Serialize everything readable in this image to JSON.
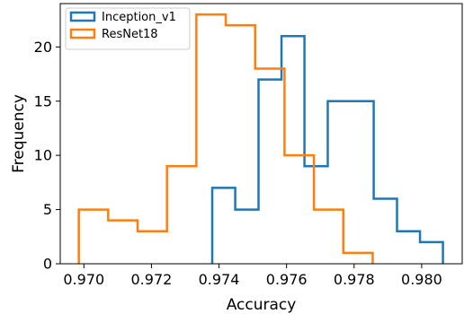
{
  "chart_data": {
    "type": "histogram",
    "xlabel": "Accuracy",
    "ylabel": "Frequency",
    "xlim": [
      0.9693,
      0.9812
    ],
    "ylim": [
      0,
      24
    ],
    "xticks": [
      "0.970",
      "0.972",
      "0.974",
      "0.976",
      "0.978",
      "0.980"
    ],
    "xtick_values": [
      0.97,
      0.972,
      0.974,
      0.976,
      0.978,
      0.98
    ],
    "yticks": [
      "0",
      "5",
      "10",
      "15",
      "20"
    ],
    "ytick_values": [
      0,
      5,
      10,
      15,
      20
    ],
    "grid": false,
    "legend_position": "top-left",
    "series": [
      {
        "name": "Inception_v1",
        "color": "#1f77b4",
        "bin_edges": [
          0.9738,
          0.97448,
          0.97517,
          0.97585,
          0.97653,
          0.97722,
          0.9779,
          0.97858,
          0.97927,
          0.97995,
          0.98063
        ],
        "values": [
          7,
          5,
          17,
          21,
          9,
          15,
          15,
          6,
          3,
          2
        ]
      },
      {
        "name": "ResNet18",
        "color": "#ff7f0e",
        "bin_edges": [
          0.96985,
          0.97072,
          0.97159,
          0.97246,
          0.97333,
          0.9742,
          0.97507,
          0.97594,
          0.97681,
          0.97768,
          0.97855
        ],
        "values": [
          5,
          4,
          3,
          9,
          23,
          22,
          18,
          10,
          5,
          1
        ]
      }
    ]
  }
}
